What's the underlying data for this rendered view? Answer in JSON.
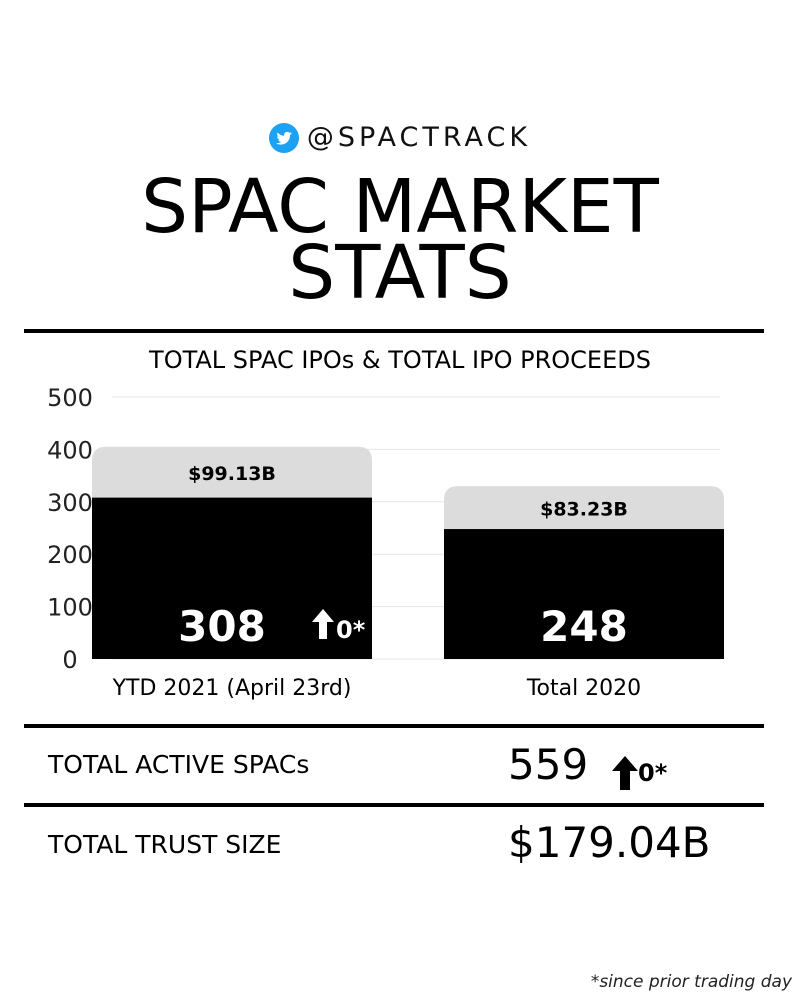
{
  "header": {
    "handle": "@SPACTRACK",
    "title_line1": "SPAC MARKET",
    "title_line2": "STATS"
  },
  "chart_data": {
    "type": "bar",
    "title": "TOTAL SPAC IPOs & TOTAL IPO PROCEEDS",
    "categories": [
      "YTD 2021 (April 23rd)",
      "Total 2020"
    ],
    "series": [
      {
        "values": [
          308,
          248
        ],
        "color": "#000000"
      }
    ],
    "proceeds_cap": [
      {
        "value": 405,
        "label": "$99.13B"
      },
      {
        "value": 330,
        "label": "$83.23B"
      }
    ],
    "bar_value_labels": [
      "308",
      "248"
    ],
    "change_labels": [
      "0*",
      ""
    ],
    "ylim": [
      0,
      500
    ],
    "yticks": [
      0,
      100,
      200,
      300,
      400,
      500
    ],
    "grid": true,
    "cap_color": "#dcdcdc"
  },
  "stats": {
    "active_label": "TOTAL ACTIVE SPACs",
    "active_value": "559",
    "active_change": "0*",
    "trust_label": "TOTAL TRUST SIZE",
    "trust_value": "$179.04B"
  },
  "footnote": "*since prior trading day"
}
